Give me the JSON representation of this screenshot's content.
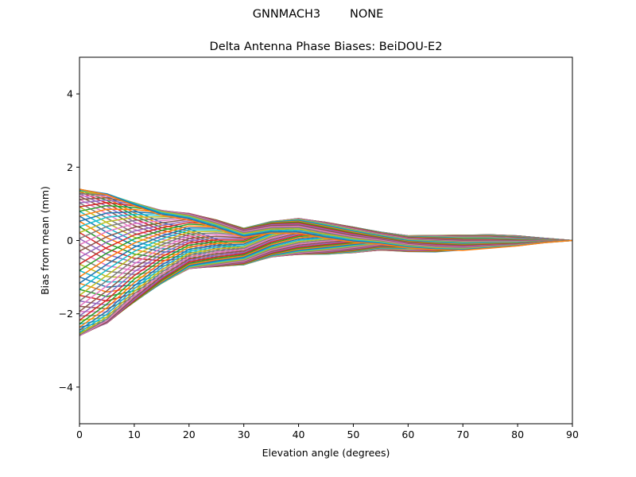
{
  "figure": {
    "suptitle": "GNNMACH3        NONE"
  },
  "chart_data": {
    "type": "line",
    "title": "Delta Antenna Phase Biases: BeiDOU-E2",
    "xlabel": "Elevation angle (degrees)",
    "ylabel": "Bias from mean (mm)",
    "xlim": [
      0,
      90
    ],
    "ylim": [
      -5,
      5
    ],
    "xticks": [
      0,
      10,
      20,
      30,
      40,
      50,
      60,
      70,
      80,
      90
    ],
    "yticks": [
      -4,
      -2,
      0,
      2,
      4
    ],
    "x": [
      0,
      5,
      10,
      15,
      20,
      25,
      30,
      35,
      40,
      45,
      50,
      55,
      60,
      65,
      70,
      75,
      80,
      85,
      90
    ],
    "grid": false,
    "legend": "none",
    "series_count": 72,
    "palette": [
      "#1f77b4",
      "#ff7f0e",
      "#2ca02c",
      "#d62728",
      "#9467bd",
      "#8c564b",
      "#e377c2",
      "#7f7f7f",
      "#bcbd22",
      "#17becf"
    ],
    "series_envelope": {
      "start_values": [
        -2.6,
        1.4
      ],
      "min_profile": [
        -2.6,
        -2.3,
        -1.75,
        -1.25,
        -0.85,
        -0.8,
        -0.75,
        -0.55,
        -0.5,
        -0.5,
        -0.45,
        -0.35,
        -0.4,
        -0.45,
        -0.45,
        -0.35,
        -0.25,
        -0.1,
        0
      ],
      "max_profile": [
        1.4,
        1.32,
        1.1,
        0.9,
        0.82,
        0.65,
        0.42,
        0.62,
        0.72,
        0.62,
        0.48,
        0.32,
        0.22,
        0.25,
        0.27,
        0.27,
        0.22,
        0.1,
        0
      ]
    }
  }
}
